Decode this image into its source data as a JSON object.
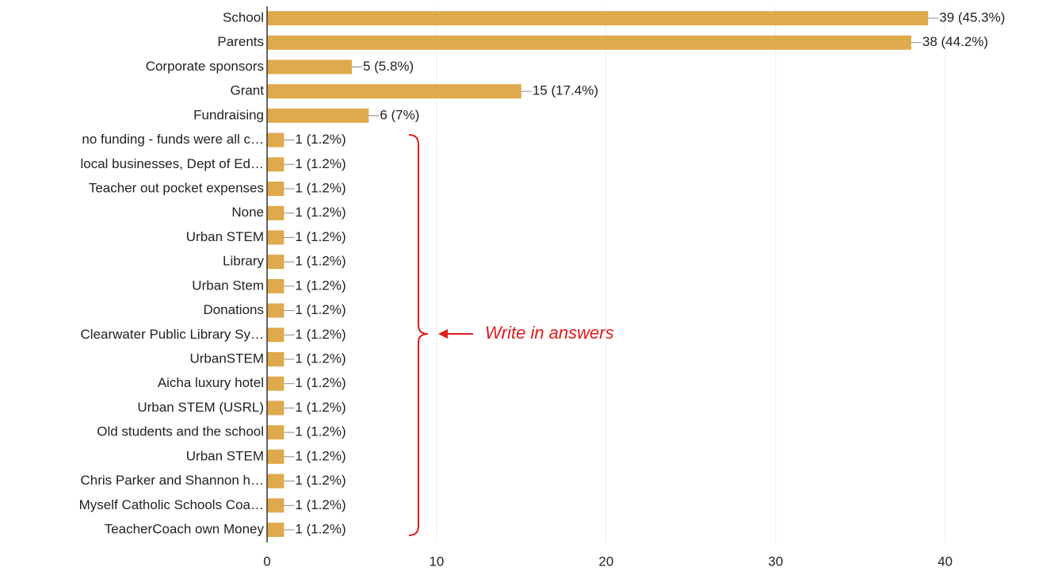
{
  "chart_data": {
    "type": "bar",
    "orientation": "horizontal",
    "categories": [
      "School",
      "Parents",
      "Corporate sponsors",
      "Grant",
      "Fundraising",
      "no funding - funds were all c…",
      "local businesses, Dept of Ed…",
      "Teacher out pocket expenses",
      "None",
      "Urban STEM",
      "Library",
      "Urban Stem",
      "Donations",
      "Clearwater Public Library Sy…",
      "UrbanSTEM",
      "Aicha luxury hotel",
      "Urban STEM (USRL)",
      "Old students and the school",
      "Urban STEM",
      "Chris Parker and Shannon h…",
      "Myself Catholic Schools Coa…",
      "TeacherCoach own Money"
    ],
    "values": [
      39,
      38,
      5,
      15,
      6,
      1,
      1,
      1,
      1,
      1,
      1,
      1,
      1,
      1,
      1,
      1,
      1,
      1,
      1,
      1,
      1,
      1
    ],
    "value_labels": [
      "39 (45.3%)",
      "38 (44.2%)",
      "5 (5.8%)",
      "15 (17.4%)",
      "6 (7%)",
      "1 (1.2%)",
      "1 (1.2%)",
      "1 (1.2%)",
      "1 (1.2%)",
      "1 (1.2%)",
      "1 (1.2%)",
      "1 (1.2%)",
      "1 (1.2%)",
      "1 (1.2%)",
      "1 (1.2%)",
      "1 (1.2%)",
      "1 (1.2%)",
      "1 (1.2%)",
      "1 (1.2%)",
      "1 (1.2%)",
      "1 (1.2%)",
      "1 (1.2%)"
    ],
    "color": "#dfaa4b",
    "xlim": [
      0,
      46
    ],
    "xticks": [
      0,
      10,
      20,
      30,
      40
    ],
    "grid": true,
    "annotation": "Write in answers"
  }
}
